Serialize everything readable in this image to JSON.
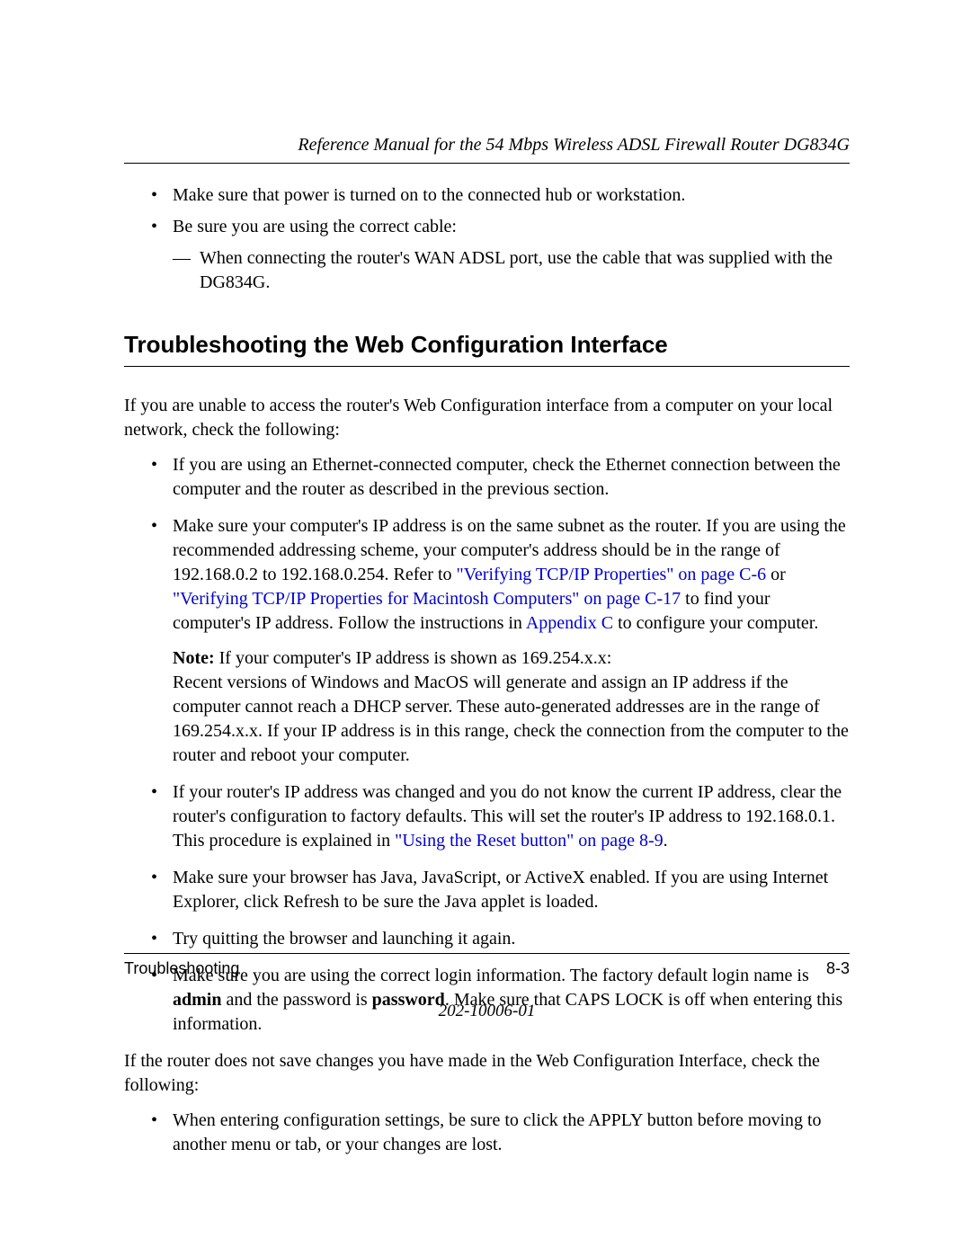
{
  "header": {
    "title": "Reference Manual for the 54 Mbps Wireless ADSL Firewall Router DG834G"
  },
  "top_bullets": {
    "b1": "Make sure that power is turned on to the connected hub or workstation.",
    "b2": "Be sure you are using the correct cable:",
    "b2_sub": "When connecting the router's WAN ADSL port, use the cable that was supplied with the DG834G."
  },
  "section_title": "Troubleshooting the Web Configuration Interface",
  "intro": "If you are unable to access the router's Web Configuration interface from a computer on your local network, check the following:",
  "bullets": {
    "i1": "If you are using an Ethernet-connected computer, check the Ethernet connection between the computer and the router as described in the previous section.",
    "i2_p1": "Make sure your computer's IP address is on the same subnet as the router. If you are using the recommended addressing scheme, your computer's address should be in the range of 192.168.0.2 to 192.168.0.254. Refer to ",
    "i2_link1": "\"Verifying TCP/IP Properties\" on page C-6",
    "i2_p2": " or ",
    "i2_link2": "\"Verifying TCP/IP Properties for Macintosh Computers\" on page C-17",
    "i2_p3": " to find your computer's IP address. Follow the instructions in ",
    "i2_link3": "Appendix C",
    "i2_p4": " to configure your computer.",
    "note_label": "Note:",
    "note_p1": " If your computer's IP address is shown as 169.254.x.x:",
    "note_p2": "Recent versions of Windows and MacOS will generate and assign an IP address if the computer cannot reach a DHCP server. These auto-generated addresses are in the range of 169.254.x.x. If your IP address is in this range, check the connection from the computer to the router and reboot your computer.",
    "i3_p1": "If your router's IP address was changed and you do not know the current IP address, clear the router's configuration to factory defaults. This will set the router's IP address to 192.168.0.1. This procedure is explained in ",
    "i3_link": "\"Using the Reset button\" on page 8-9",
    "i3_p2": ".",
    "i4": "Make sure your browser has Java, JavaScript, or ActiveX enabled. If you are using Internet Explorer, click Refresh to be sure the Java applet is loaded.",
    "i5": "Try quitting the browser and launching it again.",
    "i6_p1": "Make sure you are using the correct login information. The factory default login name is ",
    "i6_b1": "admin",
    "i6_p2": " and the password is ",
    "i6_b2": "password",
    "i6_p3": ". Make sure that CAPS LOCK is off when entering this information."
  },
  "outro": "If the router does not save changes you have made in the Web Configuration Interface, check the following:",
  "last_bullet": "When entering configuration settings, be sure to click the APPLY button before moving to another menu or tab, or your changes are lost.",
  "footer": {
    "left": "Troubleshooting",
    "right": "8-3",
    "docnum": "202-10006-01"
  }
}
